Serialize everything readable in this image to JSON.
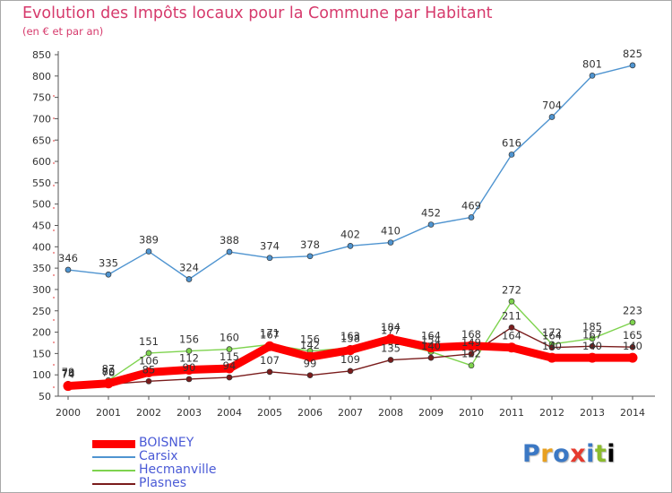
{
  "title": "Evolution des Impôts locaux pour la Commune par Habitant",
  "subtitle": "(en € et par an)",
  "logo_text": [
    "P",
    "r",
    "o",
    "x",
    "i",
    "t",
    "i"
  ],
  "chart_data": {
    "type": "line",
    "title": "Evolution des Impôts locaux pour la Commune par Habitant",
    "subtitle": "(en € et par an)",
    "xlabel": "",
    "ylabel": "",
    "categories": [
      "2000",
      "2001",
      "2002",
      "2003",
      "2004",
      "2005",
      "2006",
      "2007",
      "2008",
      "2009",
      "2010",
      "2011",
      "2012",
      "2013",
      "2014"
    ],
    "ylim": [
      50,
      850
    ],
    "yticks": [
      50,
      100,
      150,
      200,
      250,
      300,
      350,
      400,
      450,
      500,
      550,
      600,
      650,
      700,
      750,
      800,
      850
    ],
    "grid": false,
    "legend_position": "bottom-left",
    "series": [
      {
        "name": "BOISNEY",
        "color": "#ff0000",
        "values": [
          74,
          80,
          106,
          112,
          115,
          167,
          142,
          158,
          184,
          164,
          168,
          164,
          140,
          140,
          140
        ]
      },
      {
        "name": "Carsix",
        "color": "#4f94d0",
        "values": [
          346,
          335,
          389,
          324,
          388,
          374,
          378,
          402,
          410,
          452,
          469,
          616,
          704,
          801,
          825
        ]
      },
      {
        "name": "Hecmanville",
        "color": "#7ed34e",
        "values": [
          79,
          87,
          151,
          156,
          160,
          171,
          156,
          163,
          177,
          154,
          122,
          272,
          172,
          185,
          223
        ]
      },
      {
        "name": "Plasnes",
        "color": "#7a1c1c",
        "values": [
          76,
          78,
          85,
          90,
          94,
          107,
          99,
          109,
          135,
          140,
          149,
          211,
          164,
          167,
          165
        ]
      }
    ],
    "point_labels": [
      {
        "series": 0,
        "values": [
          74,
          80,
          106,
          112,
          115,
          167,
          142,
          158,
          184,
          164,
          168,
          164,
          140,
          140,
          140
        ]
      },
      {
        "series": 1,
        "values": [
          346,
          335,
          389,
          324,
          388,
          374,
          378,
          402,
          410,
          452,
          469,
          616,
          704,
          801,
          825
        ]
      },
      {
        "series": 2,
        "values": [
          79,
          87,
          151,
          156,
          160,
          171,
          156,
          163,
          177,
          154,
          122,
          272,
          172,
          185,
          223
        ]
      },
      {
        "series": 3,
        "values": [
          76,
          78,
          85,
          90,
          94,
          107,
          99,
          109,
          135,
          140,
          149,
          211,
          164,
          167,
          165
        ]
      }
    ]
  }
}
